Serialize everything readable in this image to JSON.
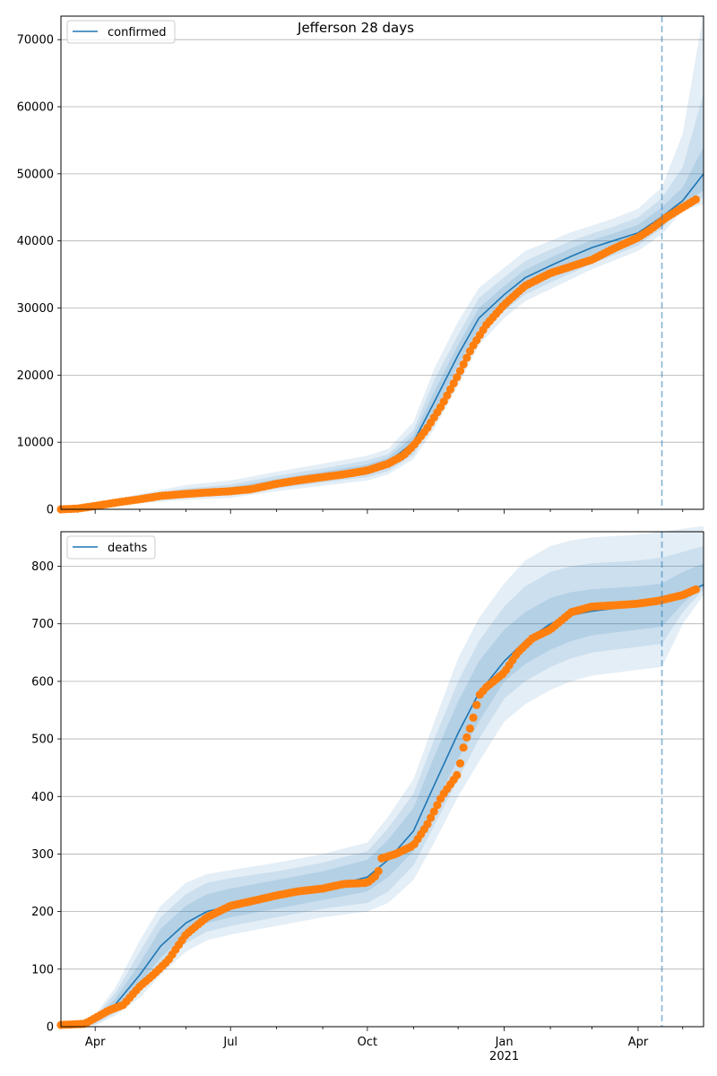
{
  "title": "Jefferson 28 days",
  "colors": {
    "model_line": "#1f77b4",
    "observed": "#ff7f0e",
    "band": "#1f77b4",
    "grid": "#b0b0b0"
  },
  "x_tick_labels": [
    "Apr",
    "Jul",
    "Oct",
    "Jan",
    "Apr"
  ],
  "x_year_label": "2021",
  "chart_data": [
    {
      "type": "line",
      "legend": "confirmed",
      "legend_position": "top-left",
      "grid": "horizontal",
      "xlim": [
        "2020-03-09",
        "2021-05-15"
      ],
      "ylim": [
        0,
        73500
      ],
      "y_ticks": [
        0,
        10000,
        20000,
        30000,
        40000,
        50000,
        60000,
        70000
      ],
      "forecast_start": "2021-04-17",
      "model": {
        "x": [
          "2020-03-09",
          "2020-04-01",
          "2020-05-01",
          "2020-06-01",
          "2020-07-01",
          "2020-08-01",
          "2020-09-01",
          "2020-10-01",
          "2020-10-15",
          "2020-11-01",
          "2020-11-15",
          "2020-12-01",
          "2020-12-15",
          "2021-01-01",
          "2021-01-15",
          "2021-02-01",
          "2021-02-15",
          "2021-03-01",
          "2021-03-15",
          "2021-04-01",
          "2021-04-17",
          "2021-05-01",
          "2021-05-15"
        ],
        "y": [
          0,
          500,
          1500,
          2300,
          2800,
          4000,
          5000,
          6000,
          7000,
          10000,
          16000,
          23000,
          28500,
          32000,
          34500,
          36300,
          37700,
          39000,
          40000,
          41200,
          43600,
          46000,
          50000
        ]
      },
      "bands": {
        "outer_upper": [
          0,
          800,
          2300,
          3600,
          4300,
          5600,
          6800,
          8000,
          9000,
          13000,
          21000,
          28000,
          33000,
          36000,
          38500,
          40000,
          41300,
          42300,
          43300,
          44800,
          48000,
          56000,
          74000
        ],
        "outer_lower": [
          0,
          300,
          900,
          1400,
          1700,
          2700,
          3500,
          4300,
          5200,
          7500,
          12000,
          18500,
          24500,
          28500,
          31000,
          32800,
          34300,
          35800,
          37000,
          38500,
          41000,
          44500,
          45500
        ],
        "mid_upper": [
          0,
          700,
          2000,
          3100,
          3700,
          5000,
          6100,
          7300,
          8200,
          11800,
          19300,
          26000,
          31500,
          34600,
          37000,
          38700,
          40000,
          41100,
          42100,
          43500,
          46400,
          51000,
          62000
        ],
        "mid_lower": [
          0,
          350,
          1100,
          1700,
          2100,
          3100,
          4000,
          4800,
          5700,
          8100,
          13200,
          20200,
          25800,
          29600,
          32000,
          33800,
          35200,
          36600,
          37800,
          39300,
          41900,
          45000,
          46500
        ],
        "inner_upper": [
          0,
          600,
          1800,
          2700,
          3300,
          4500,
          5600,
          6700,
          7700,
          11000,
          17600,
          24500,
          30000,
          33300,
          35700,
          37500,
          38900,
          40100,
          41100,
          42400,
          45000,
          48000,
          54000
        ],
        "inner_lower": [
          0,
          400,
          1200,
          1900,
          2300,
          3500,
          4400,
          5300,
          6300,
          8900,
          14400,
          21500,
          27000,
          30700,
          33300,
          35100,
          36500,
          37900,
          38900,
          40200,
          42500,
          45500,
          47500
        ]
      },
      "observed": {
        "x": [
          "2020-03-09",
          "2020-03-20",
          "2020-04-01",
          "2020-04-15",
          "2020-05-01",
          "2020-05-15",
          "2020-06-01",
          "2020-06-15",
          "2020-07-01",
          "2020-07-15",
          "2020-08-01",
          "2020-08-15",
          "2020-09-01",
          "2020-09-15",
          "2020-10-01",
          "2020-10-15",
          "2020-10-25",
          "2020-11-01",
          "2020-11-10",
          "2020-11-20",
          "2020-12-01",
          "2020-12-10",
          "2020-12-20",
          "2021-01-01",
          "2021-01-15",
          "2021-02-01",
          "2021-02-15",
          "2021-03-01",
          "2021-03-15",
          "2021-04-01",
          "2021-04-10",
          "2021-04-20",
          "2021-05-01",
          "2021-05-10"
        ],
        "y": [
          0,
          100,
          500,
          1000,
          1500,
          2000,
          2300,
          2500,
          2700,
          3000,
          3800,
          4300,
          4800,
          5200,
          5800,
          6800,
          8000,
          9500,
          12000,
          15500,
          20000,
          24000,
          27500,
          30500,
          33300,
          35200,
          36200,
          37200,
          38800,
          40500,
          41800,
          43500,
          45000,
          46200
        ]
      }
    },
    {
      "type": "line",
      "legend": "deaths",
      "legend_position": "top-left",
      "grid": "horizontal",
      "xlim": [
        "2020-03-09",
        "2021-05-15"
      ],
      "ylim": [
        0,
        860
      ],
      "y_ticks": [
        0,
        100,
        200,
        300,
        400,
        500,
        600,
        700,
        800
      ],
      "forecast_start": "2021-04-17",
      "model": {
        "x": [
          "2020-03-09",
          "2020-04-01",
          "2020-04-15",
          "2020-05-01",
          "2020-05-15",
          "2020-06-01",
          "2020-06-15",
          "2020-07-01",
          "2020-08-01",
          "2020-09-01",
          "2020-10-01",
          "2020-10-15",
          "2020-11-01",
          "2020-11-15",
          "2020-12-01",
          "2020-12-15",
          "2021-01-01",
          "2021-01-15",
          "2021-02-01",
          "2021-02-15",
          "2021-03-01",
          "2021-04-01",
          "2021-04-17",
          "2021-05-01",
          "2021-05-15"
        ],
        "y": [
          0,
          10,
          40,
          90,
          140,
          180,
          200,
          210,
          225,
          240,
          260,
          290,
          340,
          420,
          510,
          580,
          635,
          670,
          700,
          715,
          722,
          732,
          738,
          752,
          768
        ]
      },
      "bands": {
        "outer_upper": [
          0,
          20,
          70,
          150,
          210,
          250,
          265,
          272,
          285,
          300,
          320,
          365,
          430,
          530,
          640,
          710,
          770,
          810,
          835,
          845,
          850,
          855,
          860,
          865,
          870
        ],
        "outer_lower": [
          0,
          2,
          20,
          50,
          90,
          130,
          150,
          160,
          175,
          190,
          200,
          215,
          255,
          320,
          400,
          460,
          530,
          560,
          585,
          600,
          610,
          620,
          625,
          700,
          750
        ],
        "mid_upper": [
          0,
          16,
          60,
          130,
          190,
          230,
          250,
          258,
          270,
          285,
          305,
          345,
          405,
          500,
          600,
          670,
          730,
          765,
          790,
          800,
          805,
          810,
          815,
          825,
          835
        ],
        "mid_lower": [
          0,
          4,
          25,
          65,
          105,
          145,
          165,
          175,
          190,
          205,
          215,
          235,
          280,
          350,
          430,
          500,
          570,
          600,
          625,
          640,
          650,
          660,
          665,
          720,
          760
        ],
        "inner_upper": [
          0,
          13,
          50,
          110,
          170,
          210,
          230,
          240,
          255,
          270,
          290,
          325,
          380,
          470,
          565,
          635,
          690,
          720,
          745,
          755,
          760,
          765,
          770,
          790,
          805
        ],
        "inner_lower": [
          0,
          7,
          30,
          75,
          120,
          160,
          180,
          190,
          205,
          220,
          235,
          260,
          305,
          385,
          465,
          530,
          600,
          630,
          655,
          670,
          680,
          690,
          695,
          735,
          765
        ]
      },
      "observed": {
        "x": [
          "2020-03-09",
          "2020-03-25",
          "2020-04-01",
          "2020-04-10",
          "2020-04-20",
          "2020-05-01",
          "2020-05-10",
          "2020-05-20",
          "2020-06-01",
          "2020-06-15",
          "2020-07-01",
          "2020-07-15",
          "2020-08-01",
          "2020-08-15",
          "2020-09-01",
          "2020-09-15",
          "2020-10-01",
          "2020-10-08",
          "2020-10-10",
          "2020-10-20",
          "2020-11-01",
          "2020-11-10",
          "2020-11-20",
          "2020-12-01",
          "2020-12-05",
          "2020-12-10",
          "2020-12-15",
          "2020-12-20",
          "2021-01-01",
          "2021-01-10",
          "2021-01-20",
          "2021-02-01",
          "2021-02-15",
          "2021-03-01",
          "2021-03-15",
          "2021-04-01",
          "2021-04-15",
          "2021-05-01",
          "2021-05-10"
        ],
        "y": [
          3,
          5,
          15,
          28,
          38,
          70,
          90,
          115,
          160,
          190,
          210,
          218,
          228,
          235,
          240,
          248,
          250,
          265,
          292,
          300,
          315,
          350,
          400,
          440,
          490,
          525,
          575,
          590,
          615,
          650,
          675,
          690,
          720,
          730,
          732,
          735,
          740,
          750,
          760
        ]
      }
    }
  ]
}
